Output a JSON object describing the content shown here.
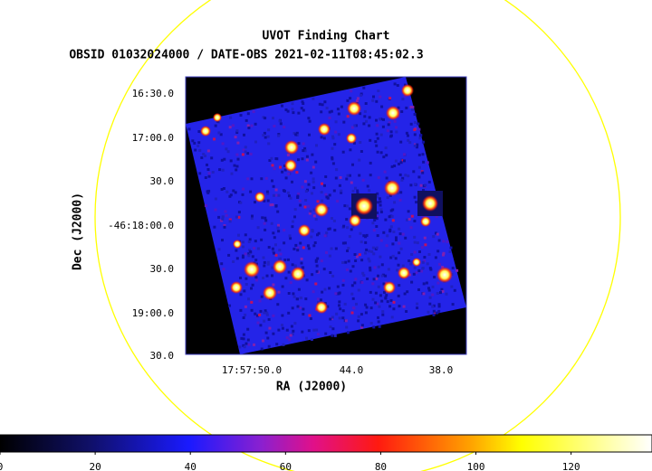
{
  "chart_data": {
    "type": "image",
    "title": "UVOT Finding Chart",
    "subtitle": "OBSID 01032024000 / DATE-OBS 2021-02-11T08:45:02.3",
    "x_label": "RA (J2000)",
    "y_label": "Dec (J2000)",
    "xtick_labels": [
      "17:57:50.0",
      "44.0",
      "38.0"
    ],
    "ytick_labels": [
      "16:30.0",
      "17:00.0",
      "30.0",
      "-46:18:00.0",
      "30.0",
      "19:00.0",
      "30.0"
    ],
    "colorbar": {
      "lim": [
        0,
        137
      ],
      "ticks": [
        0,
        20,
        40,
        60,
        80,
        100,
        120
      ]
    }
  }
}
